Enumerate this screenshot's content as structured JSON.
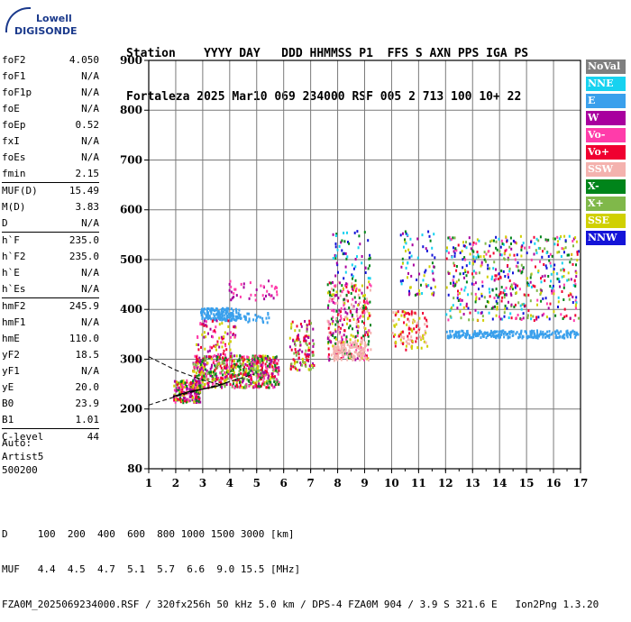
{
  "logo": {
    "line1": "Lowell",
    "line2": "DIGISONDE"
  },
  "header": {
    "row1": "Station    YYYY DAY   DDD HHMMSS P1  FFS S AXN PPS IGA PS",
    "row2": "Fortaleza 2025 Mar10 069 234000 RSF 005 2 713 100 10+ 22"
  },
  "parameters": [
    {
      "name": "foF2",
      "value": "4.050"
    },
    {
      "name": "foF1",
      "value": "N/A"
    },
    {
      "name": "foF1p",
      "value": "N/A"
    },
    {
      "name": "foE",
      "value": "N/A"
    },
    {
      "name": "foEp",
      "value": "0.52"
    },
    {
      "name": "fxI",
      "value": "N/A"
    },
    {
      "name": "foEs",
      "value": "N/A"
    },
    {
      "name": "fmin",
      "value": "2.15",
      "sep_after": true
    },
    {
      "name": "MUF(D)",
      "value": "15.49"
    },
    {
      "name": "M(D)",
      "value": "3.83"
    },
    {
      "name": "D",
      "value": "N/A",
      "sep_after": true
    },
    {
      "name": "h`F",
      "value": "235.0"
    },
    {
      "name": "h`F2",
      "value": "235.0"
    },
    {
      "name": "h`E",
      "value": "N/A"
    },
    {
      "name": "h`Es",
      "value": "N/A",
      "sep_after": true
    },
    {
      "name": "hmF2",
      "value": "245.9"
    },
    {
      "name": "hmF1",
      "value": "N/A"
    },
    {
      "name": "hmE",
      "value": "110.0"
    },
    {
      "name": "yF2",
      "value": "18.5"
    },
    {
      "name": "yF1",
      "value": "N/A"
    },
    {
      "name": "yE",
      "value": "20.0"
    },
    {
      "name": "B0",
      "value": "23.9"
    },
    {
      "name": "B1",
      "value": "1.01",
      "sep_after": true
    },
    {
      "name": "C-level",
      "value": "44",
      "sep_after": true
    }
  ],
  "autoscaling": {
    "line1": "Auto:",
    "line2": "Artist5",
    "line3": "500200"
  },
  "legend": [
    {
      "label": "NoVal",
      "color": "#7f7f7f"
    },
    {
      "label": "NNE",
      "color": "#17d2f0"
    },
    {
      "label": "E",
      "color": "#3aa0ec"
    },
    {
      "label": "W",
      "color": "#a8009e"
    },
    {
      "label": "Vo-",
      "color": "#ff3caa"
    },
    {
      "label": "Vo+",
      "color": "#f00030"
    },
    {
      "label": "SSW",
      "color": "#f4b2ae"
    },
    {
      "label": "X-",
      "color": "#00841a"
    },
    {
      "label": "X+",
      "color": "#80b84a"
    },
    {
      "label": "SSE",
      "color": "#d0d000"
    },
    {
      "label": "NNW",
      "color": "#1414d8"
    }
  ],
  "chart_data": {
    "type": "scatter",
    "xlim": [
      1,
      17
    ],
    "ylim": [
      80,
      900
    ],
    "x_ticks": [
      1,
      2,
      3,
      4,
      5,
      6,
      7,
      8,
      9,
      10,
      11,
      12,
      13,
      14,
      15,
      16,
      17
    ],
    "y_ticks": [
      80,
      200,
      300,
      400,
      500,
      600,
      700,
      800,
      900
    ],
    "grid": true,
    "point_clusters": [
      {
        "x": [
          1.9,
          2.9
        ],
        "y": [
          215,
          260
        ],
        "colors": [
          "#f00030",
          "#d0d000",
          "#a8009e",
          "#00841a",
          "#ff3caa"
        ],
        "n": 220
      },
      {
        "x": [
          2.6,
          5.8
        ],
        "y": [
          245,
          310
        ],
        "colors": [
          "#f00030",
          "#d0d000",
          "#a8009e",
          "#00841a",
          "#ff3caa",
          "#80b84a"
        ],
        "n": 700
      },
      {
        "x": [
          2.9,
          4.4
        ],
        "y": [
          380,
          405
        ],
        "colors": [
          "#3aa0ec"
        ],
        "n": 160
      },
      {
        "x": [
          4.5,
          5.5
        ],
        "y": [
          375,
          395
        ],
        "colors": [
          "#3aa0ec"
        ],
        "n": 25
      },
      {
        "x": [
          3.8,
          5.8
        ],
        "y": [
          420,
          460
        ],
        "colors": [
          "#a8009e",
          "#ff3caa"
        ],
        "n": 40
      },
      {
        "x": [
          2.7,
          4.2
        ],
        "y": [
          310,
          380
        ],
        "colors": [
          "#f00030",
          "#ff3caa",
          "#d0d000",
          "#a8009e"
        ],
        "n": 80
      },
      {
        "x": [
          6.2,
          7.1
        ],
        "y": [
          280,
          380
        ],
        "colors": [
          "#f00030",
          "#d0d000",
          "#80b84a",
          "#a8009e"
        ],
        "n": 120
      },
      {
        "x": [
          7.6,
          9.2
        ],
        "y": [
          300,
          460
        ],
        "colors": [
          "#f00030",
          "#d0d000",
          "#a8009e",
          "#00841a",
          "#ff3caa",
          "#f4b2ae"
        ],
        "n": 320
      },
      {
        "x": [
          7.8,
          9.0
        ],
        "y": [
          300,
          340
        ],
        "colors": [
          "#f4b2ae"
        ],
        "n": 120
      },
      {
        "x": [
          7.8,
          9.2
        ],
        "y": [
          460,
          560
        ],
        "colors": [
          "#1414d8",
          "#17d2f0",
          "#a8009e",
          "#00841a"
        ],
        "n": 60
      },
      {
        "x": [
          10.0,
          11.3
        ],
        "y": [
          320,
          400
        ],
        "colors": [
          "#d0d000",
          "#f4b2ae",
          "#f00030"
        ],
        "n": 110
      },
      {
        "x": [
          10.3,
          11.6
        ],
        "y": [
          430,
          560
        ],
        "colors": [
          "#1414d8",
          "#a8009e",
          "#00841a",
          "#17d2f0",
          "#d0d000"
        ],
        "n": 80
      },
      {
        "x": [
          12.0,
          16.9
        ],
        "y": [
          345,
          360
        ],
        "colors": [
          "#3aa0ec"
        ],
        "n": 260
      },
      {
        "x": [
          12.0,
          16.9
        ],
        "y": [
          380,
          550
        ],
        "colors": [
          "#a8009e",
          "#00841a",
          "#ff3caa",
          "#f00030",
          "#d0d000",
          "#17d2f0",
          "#1414d8",
          "#80b84a"
        ],
        "n": 520
      }
    ],
    "trace_curve": {
      "x": [
        1.9,
        2.5,
        3.0,
        3.5,
        4.0
      ],
      "y": [
        225,
        235,
        240,
        245,
        255
      ]
    },
    "dashed_curves": [
      {
        "x": [
          1.0,
          2.0,
          3.0,
          4.0,
          4.9
        ],
        "y": [
          208,
          225,
          240,
          255,
          270
        ]
      },
      {
        "x": [
          1.0,
          2.0,
          3.0,
          3.6
        ],
        "y": [
          305,
          278,
          258,
          250
        ]
      }
    ]
  },
  "footer": {
    "row1": "D     100  200  400  600  800 1000 1500 3000 [km]",
    "row2": "MUF   4.4  4.5  4.7  5.1  5.7  6.6  9.0 15.5 [MHz]",
    "row3": "FZA0M_2025069234000.RSF / 320fx256h 50 kHz 5.0 km / DPS-4 FZA0M 904 / 3.9 S 321.6 E   Ion2Png 1.3.20"
  }
}
